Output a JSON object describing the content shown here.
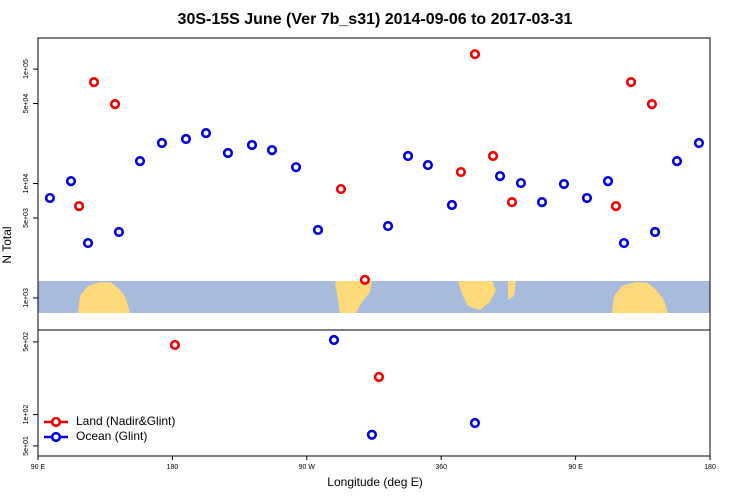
{
  "chart_data": [
    {
      "type": "scatter",
      "title": "30S-15S June (Ver 7b_s31)   2014-09-06 to 2017-03-31",
      "ylabel": "N Total",
      "ylog": true,
      "xlim": [
        90,
        540
      ],
      "ylim": [
        525,
        187000
      ],
      "yticks": [
        {
          "value": 1000,
          "label": "1e+03"
        },
        {
          "value": 5000,
          "label": "5e+03"
        },
        {
          "value": 10000,
          "label": "1e+04"
        },
        {
          "value": 50000,
          "label": "5e+04"
        },
        {
          "value": 100000,
          "label": "1e+05"
        }
      ],
      "series": [
        {
          "color": "#ee0000",
          "x": [
            117.5,
            127.5,
            141.6,
            292.9,
            308.9,
            373.2,
            382.6,
            394.7,
            407.4,
            477.0,
            487.1,
            501.1
          ],
          "values": [
            6350,
            76900,
            49400,
            8950,
            1440,
            12600,
            135000,
            17400,
            6880,
            6350,
            76900,
            49400
          ]
        },
        {
          "color": "#0000dd",
          "x": [
            98.0,
            112.1,
            123.5,
            144.2,
            158.3,
            173.0,
            189.1,
            202.5,
            217.2,
            233.3,
            246.7,
            262.8,
            277.5,
            324.4,
            337.8,
            351.1,
            367.2,
            399.4,
            413.4,
            427.5,
            442.2,
            457.6,
            471.7,
            482.4,
            503.2,
            517.9,
            532.6
          ],
          "values": [
            7470,
            10500,
            3020,
            3770,
            15700,
            22600,
            24500,
            27600,
            18500,
            21700,
            19600,
            13900,
            3930,
            4250,
            17400,
            14500,
            6490,
            11600,
            10100,
            6880,
            9900,
            7470,
            10500,
            3020,
            3770,
            15700,
            22600
          ]
        }
      ]
    },
    {
      "type": "scatter",
      "xlabel": "Longitude (deg E)",
      "ylog": true,
      "xlim": [
        90,
        540
      ],
      "ylim": [
        40,
        650
      ],
      "xticks": [
        {
          "value": 90,
          "label": "90 E"
        },
        180,
        {
          "value": 270,
          "label": "90 W"
        },
        360,
        {
          "value": 450,
          "label": "90 E"
        },
        {
          "value": 540,
          "label": "180"
        }
      ],
      "yticks": [
        {
          "value": 50,
          "label": "5e+01"
        },
        {
          "value": 100,
          "label": "1e+02"
        },
        {
          "value": 500,
          "label": "5e+02"
        }
      ],
      "legend": "lower left",
      "series": [
        {
          "name": "Land (Nadir&Glint)",
          "color": "#ee0000",
          "x": [
            181.7,
            318.3
          ],
          "values": [
            467,
            230
          ]
        },
        {
          "name": "Ocean (Glint)",
          "color": "#0000dd",
          "x": [
            288.2,
            313.6,
            382.6
          ],
          "values": [
            521,
            64,
            83
          ]
        }
      ]
    }
  ]
}
